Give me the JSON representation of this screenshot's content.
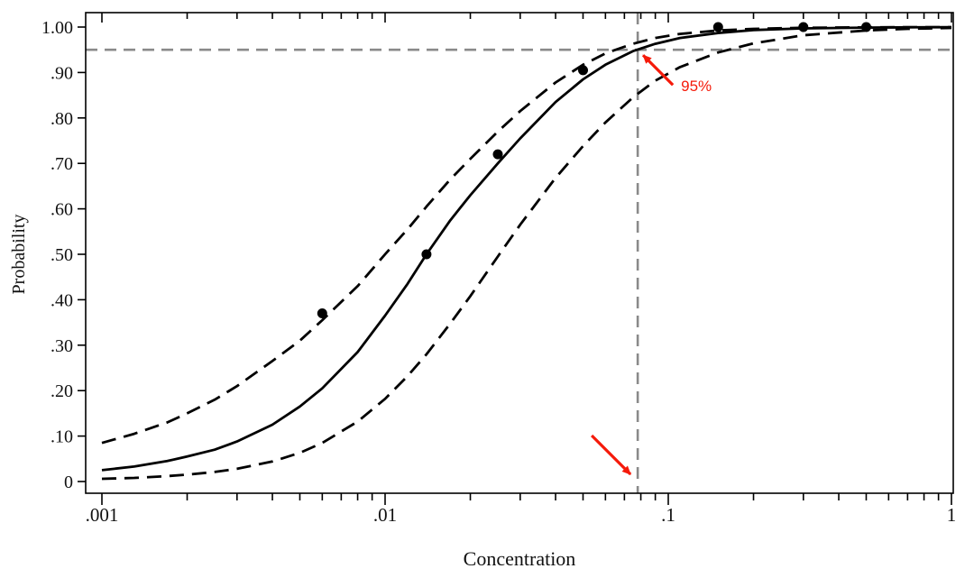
{
  "figure": {
    "background": "#ffffff",
    "frame_color": "#000000",
    "curve_color": "#000000",
    "reference_color": "#8a8a8a",
    "annotation_color": "#f51a0a"
  },
  "chart_data": {
    "type": "line",
    "title": "",
    "xlabel": "Concentration",
    "ylabel": "Probability",
    "x_scale": "log10",
    "xlim": [
      0.001,
      1
    ],
    "ylim": [
      0,
      1.0
    ],
    "x_ticks": [
      0.001,
      0.01,
      0.1,
      1
    ],
    "x_tick_labels": [
      ".001",
      ".01",
      ".1",
      "1"
    ],
    "y_ticks": [
      0,
      0.1,
      0.2,
      0.3,
      0.4,
      0.5,
      0.6,
      0.7,
      0.8,
      0.9,
      1.0
    ],
    "y_tick_labels": [
      "0",
      ".10",
      ".20",
      ".30",
      ".40",
      ".50",
      ".60",
      ".70",
      ".80",
      ".90",
      "1.00"
    ],
    "grid": false,
    "legend": "none",
    "series": [
      {
        "name": "fitted-probability-curve",
        "line": "solid",
        "color": "#000000",
        "x": [
          0.001,
          0.0013,
          0.0017,
          0.002,
          0.0025,
          0.003,
          0.004,
          0.005,
          0.006,
          0.008,
          0.01,
          0.012,
          0.014,
          0.017,
          0.02,
          0.025,
          0.03,
          0.04,
          0.05,
          0.06,
          0.075,
          0.09,
          0.11,
          0.15,
          0.2,
          0.3,
          0.5,
          0.7,
          1.0
        ],
        "y": [
          0.025,
          0.033,
          0.045,
          0.055,
          0.07,
          0.088,
          0.125,
          0.165,
          0.205,
          0.285,
          0.365,
          0.435,
          0.5,
          0.575,
          0.63,
          0.7,
          0.755,
          0.835,
          0.885,
          0.917,
          0.947,
          0.963,
          0.976,
          0.987,
          0.9935,
          0.997,
          0.9988,
          0.9994,
          0.9997
        ]
      },
      {
        "name": "upper-confidence-band",
        "line": "dashed",
        "color": "#000000",
        "x": [
          0.001,
          0.0013,
          0.0017,
          0.002,
          0.0025,
          0.003,
          0.004,
          0.005,
          0.006,
          0.008,
          0.01,
          0.012,
          0.014,
          0.017,
          0.02,
          0.025,
          0.03,
          0.04,
          0.05,
          0.06,
          0.075,
          0.09,
          0.11,
          0.15,
          0.2,
          0.3,
          0.5,
          0.7,
          1.0
        ],
        "y": [
          0.085,
          0.105,
          0.13,
          0.15,
          0.18,
          0.21,
          0.265,
          0.31,
          0.355,
          0.43,
          0.5,
          0.555,
          0.605,
          0.665,
          0.71,
          0.77,
          0.815,
          0.878,
          0.917,
          0.942,
          0.963,
          0.976,
          0.985,
          0.9925,
          0.996,
          0.9985,
          0.9995,
          0.9998,
          0.9999
        ]
      },
      {
        "name": "lower-confidence-band",
        "line": "dashed",
        "color": "#000000",
        "x": [
          0.001,
          0.0013,
          0.0017,
          0.002,
          0.0025,
          0.003,
          0.004,
          0.005,
          0.006,
          0.008,
          0.01,
          0.012,
          0.014,
          0.017,
          0.02,
          0.025,
          0.03,
          0.04,
          0.05,
          0.06,
          0.075,
          0.09,
          0.11,
          0.15,
          0.2,
          0.3,
          0.5,
          0.7,
          1.0
        ],
        "y": [
          0.006,
          0.008,
          0.012,
          0.015,
          0.021,
          0.028,
          0.044,
          0.063,
          0.085,
          0.132,
          0.182,
          0.232,
          0.28,
          0.348,
          0.408,
          0.495,
          0.565,
          0.668,
          0.738,
          0.79,
          0.845,
          0.882,
          0.912,
          0.944,
          0.964,
          0.982,
          0.9925,
          0.996,
          0.998
        ]
      }
    ],
    "scatter": {
      "name": "observed-points",
      "color": "#000000",
      "points": [
        [
          0.006,
          0.37
        ],
        [
          0.014,
          0.5
        ],
        [
          0.025,
          0.72
        ],
        [
          0.05,
          0.905
        ],
        [
          0.15,
          1.0
        ],
        [
          0.3,
          1.0
        ],
        [
          0.5,
          1.0
        ]
      ]
    },
    "reference_lines": [
      {
        "name": "probability-95-reference-line",
        "orientation": "horizontal",
        "value": 0.95,
        "style": "dashed"
      },
      {
        "name": "ec95-concentration-reference-line",
        "orientation": "vertical",
        "value": 0.078,
        "style": "dashed"
      }
    ],
    "annotations": [
      {
        "name": "ec95-callout",
        "label": "95%",
        "target_x": 0.078,
        "target_y": 0.95
      },
      {
        "name": "x-axis-arrow",
        "label": "",
        "target_x": 0.078,
        "target_y": 0.0
      }
    ]
  }
}
